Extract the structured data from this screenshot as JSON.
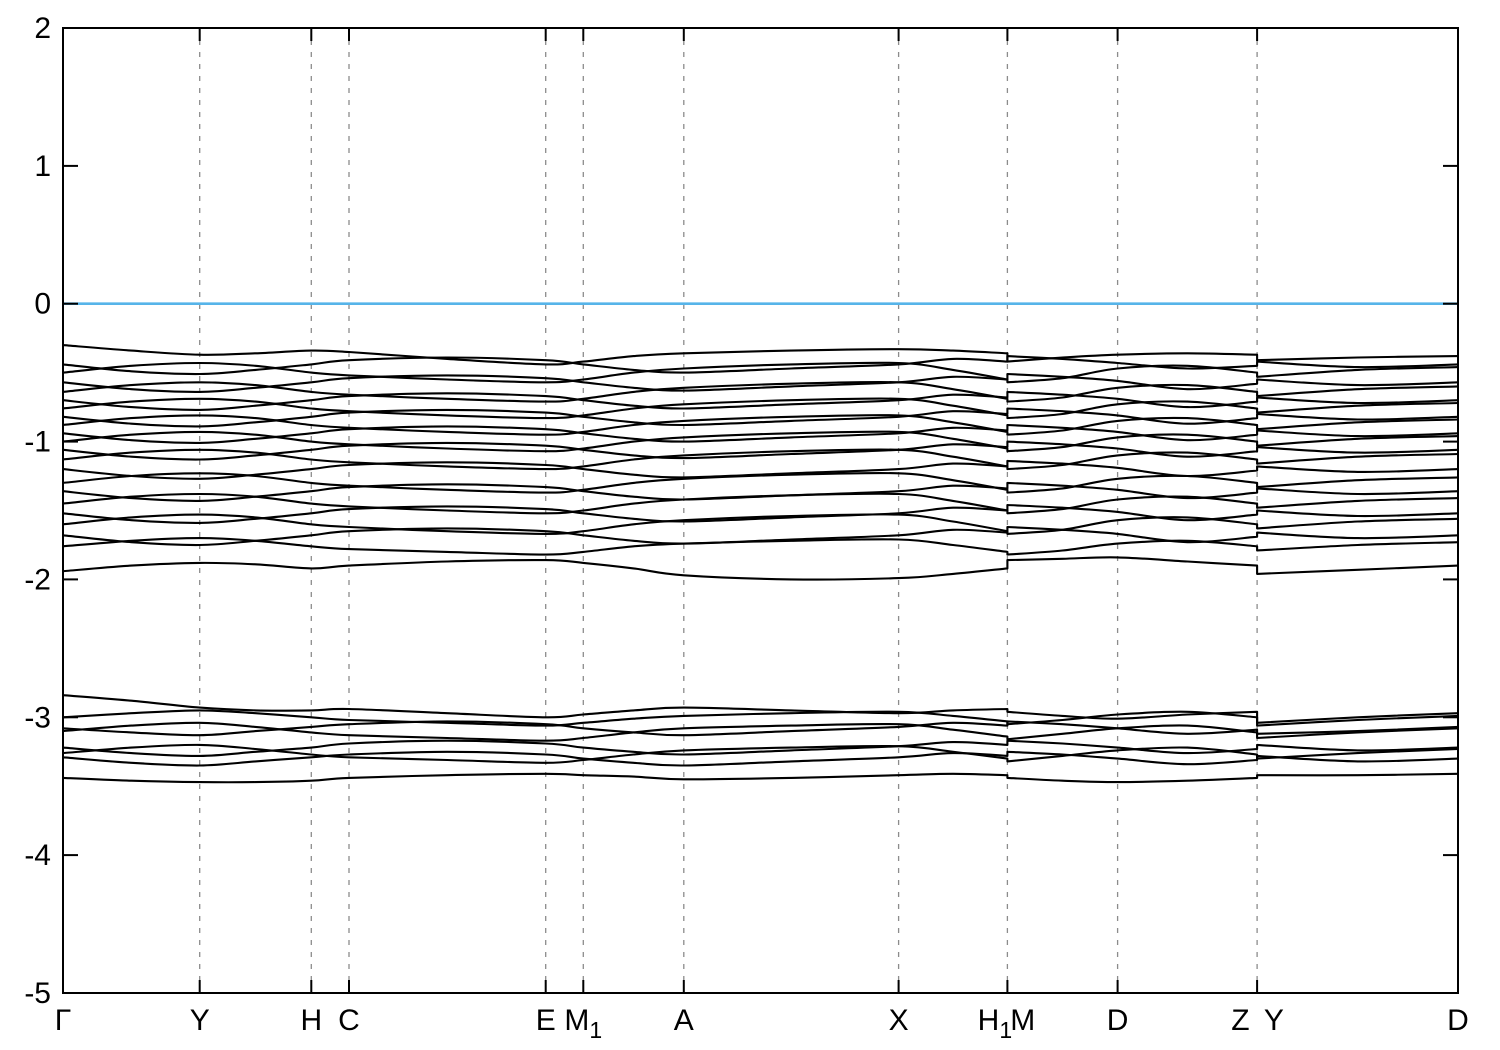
{
  "chart_data": {
    "type": "line",
    "title": "",
    "xlabel": "",
    "ylabel": "",
    "description": "Electronic band structure along monoclinic k-path with Fermi level at 0",
    "ylim": [
      -5,
      2
    ],
    "yticks": [
      2,
      1,
      0,
      -1,
      -2,
      -3,
      -4,
      -5
    ],
    "grid": {
      "vertical_dashed": true,
      "color": "#8c8c8c"
    },
    "legend": "none",
    "band_color": "#000000",
    "fermi_line": {
      "energy": 0,
      "color": "#56b4e9"
    },
    "kpath_labels": [
      {
        "text": "Γ",
        "sub": "",
        "k": 0.0
      },
      {
        "text": "Y",
        "sub": "",
        "k": 0.098
      },
      {
        "text": "H",
        "sub": "",
        "k": 0.178
      },
      {
        "text": "C",
        "sub": "",
        "k": 0.205
      },
      {
        "text": "E",
        "sub": "",
        "k": 0.346
      },
      {
        "text": "M",
        "sub": "1",
        "k": 0.373
      },
      {
        "text": "A",
        "sub": "",
        "k": 0.445
      },
      {
        "text": "X",
        "sub": "",
        "k": 0.599
      },
      {
        "text": "H",
        "sub": "1",
        "k": 0.668
      },
      {
        "text": "M",
        "sub": "",
        "k": 0.688
      },
      {
        "text": "D",
        "sub": "",
        "k": 0.756
      },
      {
        "text": "Z",
        "sub": "",
        "k": 0.844
      },
      {
        "text": "Y",
        "sub": "",
        "k": 0.868
      },
      {
        "text": "D",
        "sub": "",
        "k": 1.0
      }
    ],
    "xticks_k": [
      0,
      0.098,
      0.178,
      0.205,
      0.346,
      0.373,
      0.445,
      0.599,
      0.677,
      0.756,
      0.856,
      1
    ],
    "gridlines_k": [
      0.098,
      0.178,
      0.205,
      0.346,
      0.373,
      0.445,
      0.599,
      0.677,
      0.756,
      0.856
    ],
    "discontinuities_k": [
      0.677,
      0.856
    ],
    "stations_k": [
      0,
      0.049,
      0.098,
      0.138,
      0.178,
      0.205,
      0.2755,
      0.346,
      0.373,
      0.409,
      0.445,
      0.522,
      0.599,
      0.638,
      0.677,
      0.677,
      0.7165,
      0.756,
      0.806,
      0.856,
      0.856,
      0.928,
      1.0
    ],
    "segments": [
      [
        0,
        14
      ],
      [
        15,
        19
      ],
      [
        20,
        22
      ]
    ],
    "bands": [
      [
        -0.3,
        -0.34,
        -0.37,
        -0.36,
        -0.34,
        -0.35,
        -0.4,
        -0.44,
        -0.42,
        -0.38,
        -0.36,
        -0.34,
        -0.33,
        -0.34,
        -0.36,
        -0.42,
        -0.39,
        -0.37,
        -0.36,
        -0.37,
        -0.41,
        -0.39,
        -0.38
      ],
      [
        -0.44,
        -0.49,
        -0.51,
        -0.48,
        -0.44,
        -0.41,
        -0.39,
        -0.41,
        -0.44,
        -0.48,
        -0.5,
        -0.47,
        -0.44,
        -0.4,
        -0.42,
        -0.38,
        -0.4,
        -0.43,
        -0.47,
        -0.45,
        -0.42,
        -0.46,
        -0.44
      ],
      [
        -0.5,
        -0.45,
        -0.43,
        -0.45,
        -0.5,
        -0.52,
        -0.55,
        -0.57,
        -0.55,
        -0.5,
        -0.47,
        -0.44,
        -0.43,
        -0.48,
        -0.55,
        -0.57,
        -0.54,
        -0.47,
        -0.45,
        -0.5,
        -0.53,
        -0.48,
        -0.46
      ],
      [
        -0.57,
        -0.62,
        -0.64,
        -0.61,
        -0.57,
        -0.54,
        -0.52,
        -0.54,
        -0.57,
        -0.61,
        -0.63,
        -0.6,
        -0.57,
        -0.53,
        -0.55,
        -0.51,
        -0.53,
        -0.56,
        -0.62,
        -0.58,
        -0.55,
        -0.59,
        -0.57
      ],
      [
        -0.64,
        -0.59,
        -0.57,
        -0.59,
        -0.64,
        -0.66,
        -0.69,
        -0.71,
        -0.69,
        -0.64,
        -0.61,
        -0.58,
        -0.57,
        -0.62,
        -0.69,
        -0.71,
        -0.68,
        -0.61,
        -0.59,
        -0.64,
        -0.67,
        -0.62,
        -0.6
      ],
      [
        -0.7,
        -0.75,
        -0.77,
        -0.74,
        -0.7,
        -0.67,
        -0.65,
        -0.67,
        -0.7,
        -0.74,
        -0.76,
        -0.73,
        -0.7,
        -0.66,
        -0.68,
        -0.64,
        -0.66,
        -0.69,
        -0.75,
        -0.71,
        -0.68,
        -0.72,
        -0.7
      ],
      [
        -0.76,
        -0.71,
        -0.69,
        -0.71,
        -0.76,
        -0.78,
        -0.81,
        -0.83,
        -0.81,
        -0.76,
        -0.73,
        -0.7,
        -0.69,
        -0.74,
        -0.81,
        -0.83,
        -0.8,
        -0.73,
        -0.71,
        -0.76,
        -0.79,
        -0.74,
        -0.72
      ],
      [
        -0.82,
        -0.87,
        -0.89,
        -0.86,
        -0.82,
        -0.79,
        -0.77,
        -0.79,
        -0.82,
        -0.86,
        -0.88,
        -0.85,
        -0.82,
        -0.78,
        -0.8,
        -0.76,
        -0.78,
        -0.81,
        -0.87,
        -0.83,
        -0.8,
        -0.84,
        -0.82
      ],
      [
        -0.88,
        -0.83,
        -0.81,
        -0.83,
        -0.88,
        -0.9,
        -0.93,
        -0.95,
        -0.93,
        -0.88,
        -0.85,
        -0.82,
        -0.81,
        -0.86,
        -0.93,
        -0.95,
        -0.92,
        -0.85,
        -0.83,
        -0.88,
        -0.91,
        -0.86,
        -0.84
      ],
      [
        -0.94,
        -0.99,
        -1.01,
        -0.98,
        -0.94,
        -0.91,
        -0.89,
        -0.91,
        -0.94,
        -0.98,
        -1.0,
        -0.97,
        -0.94,
        -0.9,
        -0.92,
        -0.88,
        -0.9,
        -0.93,
        -0.99,
        -0.95,
        -0.92,
        -0.96,
        -0.94
      ],
      [
        -1.0,
        -0.95,
        -0.93,
        -0.95,
        -1.0,
        -1.02,
        -1.05,
        -1.07,
        -1.05,
        -1.0,
        -0.97,
        -0.94,
        -0.93,
        -0.98,
        -1.05,
        -1.07,
        -1.04,
        -0.97,
        -0.95,
        -1.0,
        -1.03,
        -0.98,
        -0.96
      ],
      [
        -1.06,
        -1.11,
        -1.13,
        -1.1,
        -1.06,
        -1.03,
        -1.01,
        -1.03,
        -1.06,
        -1.1,
        -1.12,
        -1.09,
        -1.06,
        -1.02,
        -1.04,
        -1.0,
        -1.02,
        -1.05,
        -1.11,
        -1.07,
        -1.04,
        -1.08,
        -1.06
      ],
      [
        -1.13,
        -1.08,
        -1.06,
        -1.08,
        -1.13,
        -1.15,
        -1.18,
        -1.2,
        -1.18,
        -1.13,
        -1.1,
        -1.07,
        -1.06,
        -1.11,
        -1.18,
        -1.2,
        -1.17,
        -1.1,
        -1.08,
        -1.13,
        -1.16,
        -1.11,
        -1.09
      ],
      [
        -1.2,
        -1.25,
        -1.27,
        -1.24,
        -1.2,
        -1.17,
        -1.15,
        -1.17,
        -1.2,
        -1.24,
        -1.26,
        -1.23,
        -1.2,
        -1.16,
        -1.18,
        -1.14,
        -1.16,
        -1.19,
        -1.25,
        -1.21,
        -1.18,
        -1.22,
        -1.2
      ],
      [
        -1.3,
        -1.25,
        -1.23,
        -1.25,
        -1.3,
        -1.32,
        -1.35,
        -1.37,
        -1.35,
        -1.3,
        -1.27,
        -1.24,
        -1.23,
        -1.28,
        -1.35,
        -1.37,
        -1.34,
        -1.27,
        -1.25,
        -1.3,
        -1.33,
        -1.28,
        -1.26
      ],
      [
        -1.36,
        -1.41,
        -1.43,
        -1.4,
        -1.36,
        -1.33,
        -1.31,
        -1.33,
        -1.36,
        -1.4,
        -1.42,
        -1.39,
        -1.36,
        -1.32,
        -1.34,
        -1.3,
        -1.32,
        -1.35,
        -1.41,
        -1.37,
        -1.34,
        -1.38,
        -1.36
      ],
      [
        -1.45,
        -1.4,
        -1.38,
        -1.4,
        -1.45,
        -1.47,
        -1.5,
        -1.52,
        -1.5,
        -1.45,
        -1.42,
        -1.39,
        -1.38,
        -1.43,
        -1.5,
        -1.52,
        -1.49,
        -1.42,
        -1.4,
        -1.45,
        -1.48,
        -1.43,
        -1.41
      ],
      [
        -1.52,
        -1.57,
        -1.59,
        -1.56,
        -1.52,
        -1.49,
        -1.47,
        -1.49,
        -1.52,
        -1.56,
        -1.58,
        -1.55,
        -1.52,
        -1.48,
        -1.5,
        -1.46,
        -1.48,
        -1.51,
        -1.57,
        -1.53,
        -1.5,
        -1.54,
        -1.52
      ],
      [
        -1.6,
        -1.55,
        -1.53,
        -1.55,
        -1.6,
        -1.62,
        -1.65,
        -1.67,
        -1.65,
        -1.6,
        -1.57,
        -1.54,
        -1.53,
        -1.58,
        -1.65,
        -1.67,
        -1.64,
        -1.57,
        -1.55,
        -1.6,
        -1.63,
        -1.58,
        -1.56
      ],
      [
        -1.68,
        -1.73,
        -1.75,
        -1.72,
        -1.68,
        -1.65,
        -1.63,
        -1.65,
        -1.68,
        -1.72,
        -1.74,
        -1.71,
        -1.68,
        -1.64,
        -1.66,
        -1.62,
        -1.64,
        -1.67,
        -1.73,
        -1.69,
        -1.66,
        -1.7,
        -1.68
      ],
      [
        -1.76,
        -1.72,
        -1.7,
        -1.72,
        -1.76,
        -1.78,
        -1.8,
        -1.82,
        -1.8,
        -1.76,
        -1.74,
        -1.72,
        -1.71,
        -1.75,
        -1.8,
        -1.82,
        -1.79,
        -1.74,
        -1.72,
        -1.76,
        -1.79,
        -1.75,
        -1.73
      ],
      [
        -1.94,
        -1.9,
        -1.88,
        -1.89,
        -1.92,
        -1.9,
        -1.87,
        -1.86,
        -1.88,
        -1.92,
        -1.97,
        -2.0,
        -1.99,
        -1.96,
        -1.92,
        -1.86,
        -1.85,
        -1.84,
        -1.87,
        -1.9,
        -1.96,
        -1.93,
        -1.9
      ],
      [
        -2.84,
        -2.88,
        -2.93,
        -2.95,
        -2.95,
        -2.94,
        -2.97,
        -3.0,
        -2.98,
        -2.95,
        -2.93,
        -2.95,
        -2.97,
        -2.95,
        -2.94,
        -2.96,
        -2.99,
        -3.01,
        -2.98,
        -2.96,
        -3.04,
        -3.0,
        -2.97
      ],
      [
        -3.0,
        -2.97,
        -2.95,
        -2.97,
        -3.0,
        -3.02,
        -3.04,
        -3.06,
        -3.04,
        -3.01,
        -2.99,
        -2.97,
        -2.96,
        -2.99,
        -3.03,
        -3.05,
        -3.02,
        -2.98,
        -2.96,
        -3.0,
        -3.06,
        -3.02,
        -2.99
      ],
      [
        -3.08,
        -3.11,
        -3.13,
        -3.1,
        -3.07,
        -3.05,
        -3.03,
        -3.05,
        -3.08,
        -3.11,
        -3.13,
        -3.1,
        -3.07,
        -3.04,
        -3.06,
        -3.03,
        -3.05,
        -3.08,
        -3.12,
        -3.09,
        -3.12,
        -3.1,
        -3.07
      ],
      [
        -3.1,
        -3.06,
        -3.04,
        -3.07,
        -3.11,
        -3.13,
        -3.15,
        -3.17,
        -3.15,
        -3.11,
        -3.08,
        -3.06,
        -3.05,
        -3.09,
        -3.14,
        -3.16,
        -3.12,
        -3.08,
        -3.06,
        -3.11,
        -3.15,
        -3.11,
        -3.08
      ],
      [
        -3.22,
        -3.26,
        -3.28,
        -3.25,
        -3.22,
        -3.19,
        -3.17,
        -3.19,
        -3.22,
        -3.25,
        -3.27,
        -3.24,
        -3.21,
        -3.18,
        -3.2,
        -3.17,
        -3.19,
        -3.22,
        -3.26,
        -3.23,
        -3.2,
        -3.24,
        -3.22
      ],
      [
        -3.26,
        -3.22,
        -3.2,
        -3.23,
        -3.27,
        -3.29,
        -3.31,
        -3.33,
        -3.31,
        -3.27,
        -3.24,
        -3.22,
        -3.21,
        -3.25,
        -3.3,
        -3.32,
        -3.28,
        -3.24,
        -3.22,
        -3.27,
        -3.3,
        -3.26,
        -3.23
      ],
      [
        -3.29,
        -3.33,
        -3.35,
        -3.32,
        -3.29,
        -3.27,
        -3.25,
        -3.27,
        -3.3,
        -3.33,
        -3.35,
        -3.32,
        -3.29,
        -3.26,
        -3.28,
        -3.25,
        -3.27,
        -3.3,
        -3.34,
        -3.31,
        -3.28,
        -3.32,
        -3.3
      ],
      [
        -3.44,
        -3.46,
        -3.47,
        -3.47,
        -3.46,
        -3.44,
        -3.42,
        -3.41,
        -3.42,
        -3.43,
        -3.45,
        -3.44,
        -3.42,
        -3.41,
        -3.42,
        -3.44,
        -3.46,
        -3.47,
        -3.46,
        -3.44,
        -3.42,
        -3.42,
        -3.41
      ]
    ]
  }
}
